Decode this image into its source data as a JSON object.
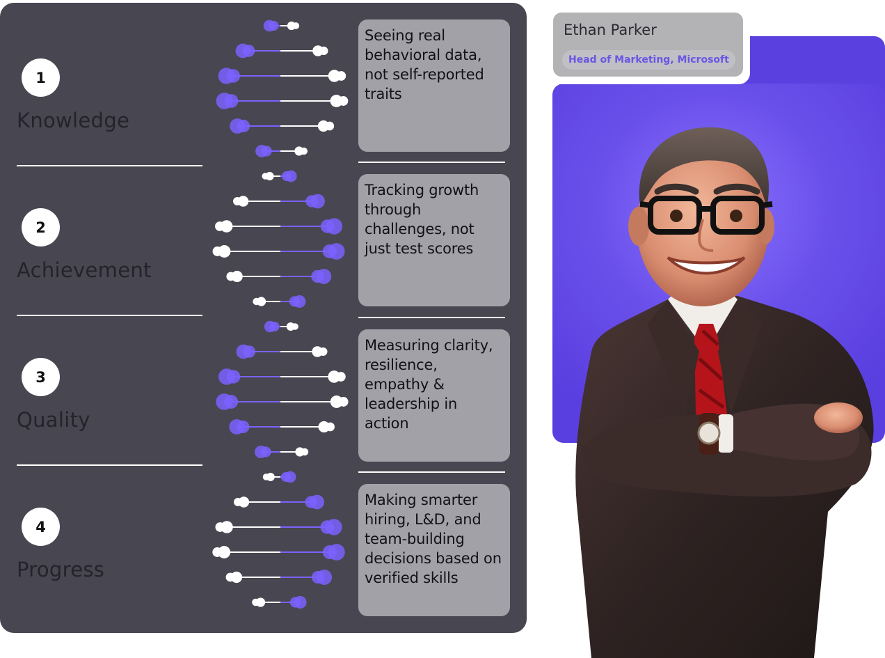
{
  "steps": [
    {
      "number": "1",
      "label": "Knowledge"
    },
    {
      "number": "2",
      "label": "Achievement"
    },
    {
      "number": "3",
      "label": "Quality"
    },
    {
      "number": "4",
      "label": "Progress"
    }
  ],
  "cards": [
    {
      "lines": [
        "Seeing real",
        "behavioral data,",
        "not self-reported",
        "traits"
      ]
    },
    {
      "lines": [
        "Tracking growth",
        "through",
        "challenges, not",
        "just test scores"
      ]
    },
    {
      "lines": [
        "Measuring clarity,",
        "resilience,",
        "empathy &",
        "leadership in",
        "action"
      ]
    },
    {
      "lines": [
        "Making smarter",
        "hiring, L&D, and",
        "team-building",
        "decisions based on",
        "verified skills"
      ]
    }
  ],
  "profile": {
    "name": "Ethan Parker",
    "role": "Head of Marketing, Microsoft"
  },
  "colors": {
    "panel": "#484650",
    "accent": "#7b62ff",
    "card": "#a3a1a8",
    "profile_bg": "#5a40df"
  }
}
